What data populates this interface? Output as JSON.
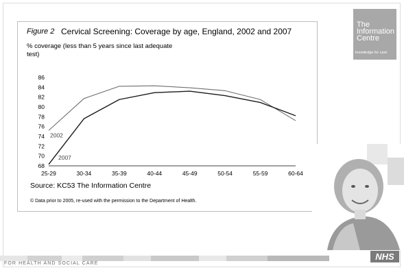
{
  "figure": {
    "label": "Figure 2",
    "title": "Cervical Screening: Coverage by age, England, 2002 and 2007",
    "source": "Source: KC53 The Information Centre",
    "copyright": "© Data prior to 2005, re-used with the permission to the Department of Health."
  },
  "chart_data": {
    "type": "line",
    "title": "Cervical Screening: Coverage by age, England, 2002 and 2007",
    "xlabel": "",
    "ylabel": "% coverage (less than 5 years since last adequate test)",
    "categories": [
      "25-29",
      "30-34",
      "35-39",
      "40-44",
      "45-49",
      "50-54",
      "55-59",
      "60-64"
    ],
    "ylim": [
      68,
      86
    ],
    "yticks": [
      68,
      70,
      72,
      74,
      76,
      78,
      80,
      82,
      84,
      86
    ],
    "grid": false,
    "legend": "inline-labels",
    "series": [
      {
        "name": "2002",
        "color": "#6e6e6e",
        "values": [
          75.2,
          81.7,
          84.2,
          84.3,
          83.9,
          83.3,
          81.5,
          77.2
        ]
      },
      {
        "name": "2007",
        "color": "#1a1a1a",
        "values": [
          68.3,
          77.6,
          81.5,
          82.9,
          83.2,
          82.3,
          80.9,
          78.2
        ]
      }
    ]
  },
  "branding": {
    "logo_lines": [
      "The",
      "Information",
      "Centre"
    ],
    "logo_tagline": "knowledge for care",
    "footer_text": "FOR HEALTH AND SOCIAL CARE",
    "nhs": "NHS",
    "logo_color": "#a8a8a8"
  }
}
